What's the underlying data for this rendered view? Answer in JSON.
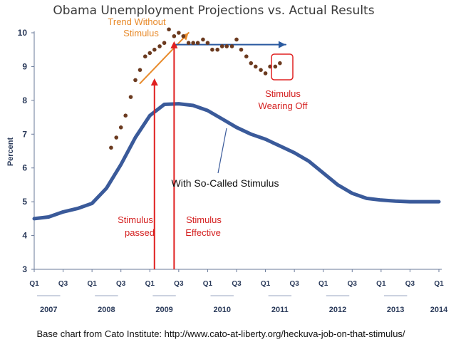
{
  "chart_data": {
    "type": "line",
    "title": "Obama Unemployment Projections vs. Actual Results",
    "ylabel": "Percent",
    "xlabel": "",
    "ylim": [
      3,
      10
    ],
    "yticks": [
      3,
      4,
      5,
      6,
      7,
      8,
      9,
      10
    ],
    "x_tick_labels": [
      "Q1",
      "Q3",
      "Q1",
      "Q3",
      "Q1",
      "Q3",
      "Q1",
      "Q3",
      "Q1",
      "Q3",
      "Q1",
      "Q3",
      "Q1",
      "Q3",
      "Q1"
    ],
    "x_tick_positions": [
      2007.0,
      2007.5,
      2008.0,
      2008.5,
      2009.0,
      2009.5,
      2010.0,
      2010.5,
      2011.0,
      2011.5,
      2012.0,
      2012.5,
      2013.0,
      2013.5,
      2014.0
    ],
    "year_labels": [
      "2007",
      "2008",
      "2009",
      "2010",
      "2011",
      "2012",
      "2013",
      "2014"
    ],
    "year_positions": [
      2007.25,
      2008.25,
      2009.25,
      2010.25,
      2011.25,
      2012.25,
      2013.25,
      2014.0
    ],
    "xlim": [
      2007.0,
      2014.0
    ],
    "grid": false,
    "series": [
      {
        "name": "With So-Called Stimulus",
        "color": "#3a5a9a",
        "x": [
          2007.0,
          2007.25,
          2007.5,
          2007.75,
          2008.0,
          2008.25,
          2008.5,
          2008.75,
          2009.0,
          2009.25,
          2009.5,
          2009.75,
          2010.0,
          2010.25,
          2010.5,
          2010.75,
          2011.0,
          2011.25,
          2011.5,
          2011.75,
          2012.0,
          2012.25,
          2012.5,
          2012.75,
          2013.0,
          2013.25,
          2013.5,
          2013.75,
          2014.0
        ],
        "y": [
          4.5,
          4.55,
          4.7,
          4.8,
          4.95,
          5.4,
          6.1,
          6.9,
          7.55,
          7.88,
          7.9,
          7.85,
          7.7,
          7.45,
          7.2,
          7.0,
          6.85,
          6.65,
          6.45,
          6.2,
          5.85,
          5.5,
          5.25,
          5.1,
          5.05,
          5.02,
          5.0,
          5.0,
          5.0
        ]
      },
      {
        "name": "Actual",
        "type": "scatter",
        "color": "#6b3a1f",
        "x": [
          2008.33,
          2008.42,
          2008.5,
          2008.58,
          2008.67,
          2008.75,
          2008.83,
          2008.92,
          2009.0,
          2009.08,
          2009.17,
          2009.25,
          2009.33,
          2009.42,
          2009.5,
          2009.58,
          2009.67,
          2009.75,
          2009.83,
          2009.92,
          2010.0,
          2010.08,
          2010.17,
          2010.25,
          2010.33,
          2010.42,
          2010.5,
          2010.58,
          2010.67,
          2010.75,
          2010.83,
          2010.92,
          2011.0,
          2011.08,
          2011.17,
          2011.25
        ],
        "y": [
          6.6,
          6.9,
          7.2,
          7.55,
          8.1,
          8.6,
          8.9,
          9.3,
          9.4,
          9.5,
          9.6,
          9.7,
          10.1,
          9.9,
          10.0,
          9.9,
          9.7,
          9.7,
          9.7,
          9.8,
          9.7,
          9.5,
          9.5,
          9.6,
          9.6,
          9.6,
          9.8,
          9.5,
          9.3,
          9.1,
          9.0,
          8.9,
          8.8,
          9.0,
          9.0,
          9.1
        ]
      },
      {
        "name": "Trend Without Stimulus",
        "color": "#e88a2a",
        "x": [
          2008.83,
          2009.67
        ],
        "y": [
          8.5,
          10.0
        ]
      },
      {
        "name": "",
        "color": "#2a5aa0",
        "x": [
          2009.42,
          2011.35
        ],
        "y": [
          9.65,
          9.65
        ]
      }
    ],
    "vlines": [
      {
        "x": 2009.08,
        "y_from": 3,
        "y_to": 8.65,
        "color": "#e02020"
      },
      {
        "x": 2009.42,
        "y_from": 3,
        "y_to": 9.75,
        "color": "#e02020"
      }
    ],
    "annotations": [
      {
        "lines": [
          "Trend Without",
          "Stimulus"
        ],
        "color": "orange"
      },
      {
        "lines": [
          "Stimulus",
          "Wearing Off"
        ],
        "color": "red"
      },
      {
        "lines": [
          "With So-Called Stimulus"
        ],
        "color": "black"
      },
      {
        "lines": [
          "Stimulus",
          "passed"
        ],
        "color": "red"
      },
      {
        "lines": [
          "Stimulus",
          "Effective"
        ],
        "color": "red"
      }
    ]
  },
  "caption": "Base chart from Cato Institute: http://www.cato-at-liberty.org/heckuva-job-on-that-stimulus/"
}
